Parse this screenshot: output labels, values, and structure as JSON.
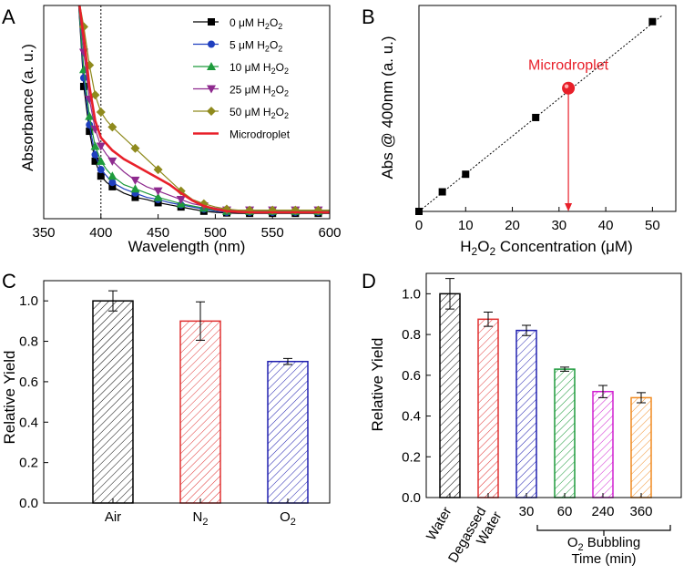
{
  "chart_data": [
    {
      "panel": "A",
      "type": "line",
      "xlabel": "Wavelength (nm)",
      "ylabel": "Absorbance (a. u.)",
      "xlim": [
        350,
        600
      ],
      "xticks": [
        350,
        400,
        450,
        500,
        550,
        600
      ],
      "ylim": [
        0,
        1
      ],
      "y_ticks_shown": false,
      "vline_x": 400,
      "legend_position": "top-right",
      "series": [
        {
          "name_pre": "0 μM H",
          "name_sub": "2",
          "name_mid": "O",
          "name_sub2": "2",
          "color": "#000000",
          "marker": "square",
          "x": [
            380,
            385,
            390,
            395,
            400,
            405,
            410,
            420,
            430,
            440,
            450,
            460,
            470,
            480,
            490,
            500,
            510,
            520,
            530,
            540,
            550,
            560,
            570,
            580,
            590,
            600
          ],
          "y": [
            1.05,
            0.62,
            0.41,
            0.27,
            0.2,
            0.17,
            0.15,
            0.12,
            0.1,
            0.09,
            0.075,
            0.065,
            0.055,
            0.045,
            0.035,
            0.03,
            0.027,
            0.025,
            0.025,
            0.025,
            0.025,
            0.025,
            0.025,
            0.025,
            0.025,
            0.025
          ]
        },
        {
          "name_pre": "5 μM H",
          "name_sub": "2",
          "name_mid": "O",
          "name_sub2": "2",
          "color": "#1f3fbf",
          "marker": "circle",
          "x": [
            380,
            385,
            390,
            395,
            400,
            405,
            410,
            420,
            430,
            440,
            450,
            460,
            470,
            480,
            490,
            500,
            510,
            520,
            530,
            540,
            550,
            560,
            570,
            580,
            590,
            600
          ],
          "y": [
            1.05,
            0.66,
            0.44,
            0.3,
            0.23,
            0.2,
            0.17,
            0.14,
            0.12,
            0.1,
            0.09,
            0.075,
            0.065,
            0.055,
            0.045,
            0.035,
            0.03,
            0.03,
            0.03,
            0.03,
            0.03,
            0.03,
            0.03,
            0.03,
            0.03,
            0.03
          ]
        },
        {
          "name_pre": "10 μM H",
          "name_sub": "2",
          "name_mid": "O",
          "name_sub2": "2",
          "color": "#1e9b3c",
          "marker": "triangle-up",
          "x": [
            380,
            385,
            390,
            395,
            400,
            405,
            410,
            420,
            430,
            440,
            450,
            460,
            470,
            480,
            490,
            500,
            510,
            520,
            530,
            540,
            550,
            560,
            570,
            580,
            590,
            600
          ],
          "y": [
            1.05,
            0.7,
            0.48,
            0.34,
            0.27,
            0.23,
            0.2,
            0.16,
            0.14,
            0.12,
            0.1,
            0.085,
            0.07,
            0.06,
            0.05,
            0.04,
            0.035,
            0.035,
            0.035,
            0.035,
            0.035,
            0.035,
            0.035,
            0.035,
            0.035,
            0.035
          ]
        },
        {
          "name_pre": "25 μM H",
          "name_sub": "2",
          "name_mid": "O",
          "name_sub2": "2",
          "color": "#8e2a8e",
          "marker": "triangle-down",
          "x": [
            380,
            385,
            390,
            395,
            400,
            405,
            410,
            420,
            430,
            440,
            450,
            460,
            470,
            480,
            490,
            500,
            510,
            520,
            530,
            540,
            550,
            560,
            570,
            580,
            590,
            600
          ],
          "y": [
            1.05,
            0.78,
            0.56,
            0.42,
            0.34,
            0.3,
            0.27,
            0.22,
            0.18,
            0.15,
            0.13,
            0.11,
            0.09,
            0.07,
            0.06,
            0.05,
            0.04,
            0.04,
            0.04,
            0.04,
            0.04,
            0.04,
            0.04,
            0.04,
            0.04,
            0.04
          ]
        },
        {
          "name_pre": "50 μM H",
          "name_sub": "2",
          "name_mid": "O",
          "name_sub2": "2",
          "color": "#8f8a1d",
          "marker": "diamond",
          "x": [
            380,
            385,
            390,
            395,
            400,
            405,
            410,
            420,
            430,
            440,
            450,
            460,
            470,
            480,
            490,
            500,
            510,
            520,
            530,
            540,
            550,
            560,
            570,
            580,
            590,
            600
          ],
          "y": [
            1.05,
            0.9,
            0.72,
            0.58,
            0.5,
            0.46,
            0.43,
            0.38,
            0.33,
            0.28,
            0.23,
            0.18,
            0.13,
            0.09,
            0.07,
            0.055,
            0.045,
            0.04,
            0.04,
            0.04,
            0.04,
            0.04,
            0.04,
            0.04,
            0.04,
            0.04
          ]
        },
        {
          "name": "Microdroplet",
          "color": "#e8202a",
          "marker": "none",
          "x": [
            380,
            385,
            390,
            395,
            400,
            405,
            410,
            420,
            430,
            440,
            450,
            460,
            470,
            480,
            490,
            500,
            510,
            520,
            530,
            540,
            550,
            560,
            570,
            580,
            590,
            600
          ],
          "y": [
            1.05,
            0.85,
            0.62,
            0.46,
            0.38,
            0.35,
            0.32,
            0.28,
            0.25,
            0.22,
            0.19,
            0.16,
            0.12,
            0.085,
            0.06,
            0.045,
            0.035,
            0.032,
            0.03,
            0.03,
            0.03,
            0.03,
            0.03,
            0.03,
            0.03,
            0.03
          ]
        }
      ]
    },
    {
      "panel": "B",
      "type": "scatter",
      "xlabel_pre": "H",
      "xlabel_sub": "2",
      "xlabel_mid": "O",
      "xlabel_sub2": "2",
      "xlabel_post": " Concentration (μM)",
      "ylabel": "Abs @ 400nm (a. u.)",
      "xlim": [
        0,
        55
      ],
      "xticks": [
        0,
        10,
        20,
        30,
        40,
        50
      ],
      "ylim": [
        0,
        1
      ],
      "y_ticks_shown": false,
      "points": [
        {
          "x": 0,
          "y": 0.0
        },
        {
          "x": 5,
          "y": 0.1
        },
        {
          "x": 10,
          "y": 0.19
        },
        {
          "x": 25,
          "y": 0.48
        },
        {
          "x": 50,
          "y": 0.97
        }
      ],
      "fit_line": {
        "x": [
          0,
          52
        ],
        "y": [
          0.0,
          1.0
        ]
      },
      "microdroplet": {
        "label": "Microdroplet",
        "x": 32,
        "y": 0.63,
        "color": "#e8202a"
      }
    },
    {
      "panel": "C",
      "type": "bar",
      "ylabel": "Relative Yield",
      "ylim": [
        0,
        1.1
      ],
      "yticks": [
        "0.0",
        "0.2",
        "0.4",
        "0.6",
        "0.8",
        "1.0"
      ],
      "categories": [
        {
          "label": "Air",
          "sub": "",
          "value": 1.0,
          "error": 0.05,
          "color": "#000000"
        },
        {
          "label": "N",
          "sub": "2",
          "value": 0.9,
          "error": 0.095,
          "color": "#e03030"
        },
        {
          "label": "O",
          "sub": "2",
          "value": 0.7,
          "error": 0.015,
          "color": "#2020b0"
        }
      ]
    },
    {
      "panel": "D",
      "type": "bar",
      "ylabel": "Relative Yield",
      "ylim": [
        0,
        1.1
      ],
      "yticks": [
        "0.0",
        "0.2",
        "0.4",
        "0.6",
        "0.8",
        "1.0"
      ],
      "categories": [
        {
          "label": "Water",
          "value": 1.0,
          "error": 0.075,
          "color": "#000000"
        },
        {
          "label": "Degassed Water",
          "value": 0.875,
          "error": 0.035,
          "color": "#e03030"
        },
        {
          "label": "30",
          "value": 0.82,
          "error": 0.025,
          "color": "#2020b0"
        },
        {
          "label": "60",
          "value": 0.63,
          "error": 0.01,
          "color": "#1e9b3c"
        },
        {
          "label": "240",
          "value": 0.52,
          "error": 0.03,
          "color": "#d020d0"
        },
        {
          "label": "360",
          "value": 0.49,
          "error": 0.025,
          "color": "#f08a20"
        }
      ],
      "group_label_pre": "O",
      "group_label_sub": "2",
      "group_label_post": " Bubbling",
      "group_label_line2": "Time (min)"
    }
  ],
  "panels": {
    "a": "A",
    "b": "B",
    "c": "C",
    "d": "D"
  },
  "rot_labels": {
    "water": "Water",
    "degassed_1": "Degassed",
    "degassed_2": "Water"
  }
}
